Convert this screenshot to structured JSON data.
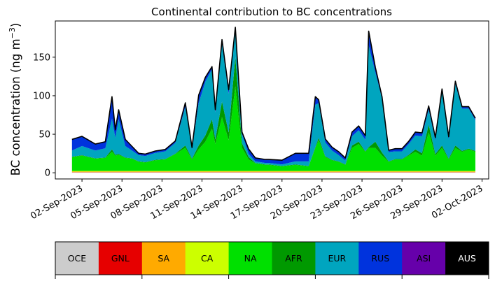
{
  "chart_data": {
    "type": "area",
    "stacked": true,
    "title": "Continental contribution to BC concentrations",
    "xlabel": "",
    "ylabel_main": "BC concentration (ng m",
    "ylabel_sup": "−3",
    "ylabel_close": ")",
    "ylim": [
      -8,
      197
    ],
    "yticks": [
      0,
      50,
      100,
      150
    ],
    "xlim": [
      "2023-08-31T00:00",
      "2023-10-02T12:00"
    ],
    "xticks": [
      "2023-09-02",
      "2023-09-05",
      "2023-09-08",
      "2023-09-11",
      "2023-09-14",
      "2023-09-17",
      "2023-09-20",
      "2023-09-23",
      "2023-09-26",
      "2023-09-29",
      "2023-10-02"
    ],
    "xtick_labels": [
      "02-Sep-2023",
      "05-Sep-2023",
      "08-Sep-2023",
      "11-Sep-2023",
      "14-Sep-2023",
      "17-Sep-2023",
      "20-Sep-2023",
      "23-Sep-2023",
      "26-Sep-2023",
      "29-Sep-2023",
      "02-Oct-2023"
    ],
    "grid": false,
    "x": [
      "2023-09-01T06:00",
      "2023-09-02T00:00",
      "2023-09-03T00:00",
      "2023-09-03T18:00",
      "2023-09-04T06:00",
      "2023-09-04T12:00",
      "2023-09-04T18:00",
      "2023-09-05T06:00",
      "2023-09-05T18:00",
      "2023-09-06T06:00",
      "2023-09-06T18:00",
      "2023-09-07T12:00",
      "2023-09-08T06:00",
      "2023-09-09T00:00",
      "2023-09-09T18:00",
      "2023-09-10T06:00",
      "2023-09-10T18:00",
      "2023-09-11T06:00",
      "2023-09-11T18:00",
      "2023-09-12T00:00",
      "2023-09-12T12:00",
      "2023-09-13T00:00",
      "2023-09-13T12:00",
      "2023-09-14T00:00",
      "2023-09-14T12:00",
      "2023-09-15T00:00",
      "2023-09-15T18:00",
      "2023-09-16T00:00",
      "2023-09-17T00:00",
      "2023-09-18T00:00",
      "2023-09-19T00:00",
      "2023-09-19T12:00",
      "2023-09-19T18:00",
      "2023-09-20T06:00",
      "2023-09-20T18:00",
      "2023-09-21T06:00",
      "2023-09-21T18:00",
      "2023-09-22T06:00",
      "2023-09-22T18:00",
      "2023-09-23T06:00",
      "2023-09-23T12:00",
      "2023-09-24T00:00",
      "2023-09-24T12:00",
      "2023-09-25T00:00",
      "2023-09-25T12:00",
      "2023-09-26T00:00",
      "2023-09-26T12:00",
      "2023-09-27T00:00",
      "2023-09-27T12:00",
      "2023-09-28T00:00",
      "2023-09-28T12:00",
      "2023-09-29T00:00",
      "2023-09-29T12:00",
      "2023-09-30T00:00",
      "2023-09-30T12:00",
      "2023-10-01T00:00",
      "2023-10-01T12:00"
    ],
    "series": [
      {
        "name": "OCE",
        "color": "#cccccc",
        "values": [
          0.5,
          0.5,
          0.5,
          0.5,
          0.5,
          0.5,
          0.5,
          0.5,
          0.5,
          0.5,
          0.5,
          0.5,
          0.5,
          0.5,
          0.5,
          0.5,
          0.5,
          0.5,
          0.5,
          0.5,
          0.5,
          0.5,
          0.5,
          0.5,
          0.5,
          0.5,
          0.5,
          0.5,
          0.5,
          0.5,
          0.5,
          0.5,
          0.5,
          0.5,
          0.5,
          0.5,
          0.5,
          0.5,
          0.5,
          0.5,
          0.5,
          0.5,
          0.5,
          0.5,
          0.5,
          0.5,
          0.5,
          0.5,
          0.5,
          0.5,
          0.5,
          0.5,
          0.5,
          0.5,
          0.5,
          0.5,
          0.5
        ]
      },
      {
        "name": "GNL",
        "color": "#e60000",
        "values": [
          0.3,
          0.3,
          0.3,
          0.3,
          0.3,
          0.3,
          0.3,
          0.3,
          0.3,
          0.3,
          0.3,
          0.3,
          0.3,
          0.3,
          0.3,
          0.3,
          0.3,
          0.3,
          0.3,
          0.3,
          0.3,
          0.3,
          0.3,
          0.3,
          0.3,
          0.3,
          0.3,
          0.3,
          0.3,
          0.3,
          0.3,
          0.3,
          0.3,
          0.3,
          0.3,
          0.3,
          0.3,
          0.3,
          0.3,
          0.3,
          0.3,
          0.3,
          0.3,
          0.3,
          0.3,
          0.3,
          0.3,
          0.3,
          0.3,
          0.3,
          0.3,
          0.3,
          0.3,
          0.3,
          0.3,
          0.3,
          0.3
        ]
      },
      {
        "name": "SA",
        "color": "#ffaa00",
        "values": [
          1,
          1,
          1,
          1,
          1,
          1,
          1,
          1,
          1,
          1,
          1,
          1,
          1,
          1,
          1,
          1,
          1,
          1,
          1,
          1,
          1,
          1,
          1,
          1,
          1,
          1,
          1,
          1,
          1,
          1,
          1,
          1,
          1,
          1,
          1,
          1,
          1,
          1,
          1,
          1,
          1,
          1,
          1,
          1,
          1,
          1,
          1,
          1,
          1,
          1,
          1,
          1,
          1,
          1,
          1,
          1,
          1
        ]
      },
      {
        "name": "CA",
        "color": "#ccff00",
        "values": [
          0.5,
          0.5,
          0.5,
          0.5,
          0.5,
          0.5,
          0.5,
          0.5,
          0.5,
          0.5,
          0.5,
          0.5,
          0.5,
          0.5,
          0.5,
          0.5,
          0.5,
          0.5,
          0.5,
          0.5,
          0.5,
          0.5,
          0.5,
          0.5,
          0.5,
          0.5,
          0.5,
          0.5,
          0.5,
          0.5,
          0.5,
          0.5,
          0.5,
          0.5,
          0.5,
          0.5,
          0.5,
          0.5,
          0.5,
          0.5,
          0.5,
          0.5,
          0.5,
          0.5,
          0.5,
          0.5,
          0.5,
          0.5,
          0.5,
          0.5,
          0.5,
          0.5,
          0.5,
          0.5,
          0.5,
          0.5,
          0.5
        ]
      },
      {
        "name": "NA",
        "color": "#00e000",
        "values": [
          18,
          20,
          16,
          17,
          25,
          20,
          21,
          17,
          16,
          12,
          11,
          14,
          15,
          22,
          30,
          15,
          28,
          38,
          55,
          35,
          70,
          40,
          110,
          30,
          15,
          10,
          8,
          8,
          6,
          8,
          6,
          30,
          40,
          18,
          14,
          12,
          8,
          30,
          35,
          25,
          30,
          30,
          20,
          12,
          15,
          15,
          20,
          25,
          20,
          50,
          20,
          30,
          15,
          30,
          25,
          28,
          25
        ]
      },
      {
        "name": "AFR",
        "color": "#009900",
        "values": [
          0.5,
          0.5,
          0.5,
          0.5,
          3,
          1,
          1,
          0.5,
          0.5,
          0.5,
          0.5,
          0.5,
          0.5,
          0.5,
          3,
          1,
          5,
          8,
          12,
          6,
          20,
          10,
          38,
          6,
          3,
          0.5,
          0.5,
          0.5,
          0.5,
          0.5,
          0.5,
          1,
          3,
          1,
          0.5,
          0.5,
          0.5,
          3,
          3,
          0.5,
          1,
          8,
          4,
          0.5,
          0.5,
          0.5,
          1,
          3,
          3,
          10,
          2,
          3,
          1,
          3,
          1,
          1,
          1
        ]
      },
      {
        "name": "EUR",
        "color": "#00a5bf",
        "values": [
          8,
          12,
          10,
          12,
          40,
          22,
          45,
          15,
          10,
          8,
          8,
          9,
          10,
          14,
          50,
          12,
          55,
          70,
          65,
          35,
          75,
          50,
          35,
          12,
          4,
          2,
          2,
          2,
          2,
          4,
          6,
          55,
          45,
          18,
          12,
          8,
          5,
          12,
          15,
          15,
          132,
          90,
          70,
          12,
          10,
          10,
          14,
          18,
          22,
          20,
          18,
          70,
          25,
          80,
          55,
          52,
          40
        ]
      },
      {
        "name": "RUS",
        "color": "#0033dd",
        "values": [
          14,
          12,
          8,
          8,
          28,
          10,
          12,
          8,
          5,
          2,
          2,
          2,
          2,
          2,
          5,
          2,
          10,
          5,
          3,
          3,
          5,
          5,
          3,
          2,
          6,
          4,
          4,
          4,
          5,
          10,
          10,
          10,
          4,
          4,
          4,
          4,
          3,
          5,
          5,
          5,
          18,
          6,
          2,
          2,
          3,
          3,
          3,
          4,
          4,
          4,
          3,
          3,
          3,
          3,
          2,
          2,
          2
        ]
      },
      {
        "name": "ASI",
        "color": "#6600aa",
        "values": [
          0.5,
          0.5,
          0.5,
          0.5,
          0.5,
          0.5,
          0.5,
          0.5,
          0.5,
          0.5,
          0.5,
          0.5,
          0.5,
          0.5,
          0.5,
          0.5,
          0.5,
          0.5,
          0.5,
          0.5,
          0.5,
          0.5,
          0.5,
          0.5,
          0.5,
          0.5,
          0.5,
          0.5,
          0.5,
          0.5,
          0.5,
          0.5,
          0.5,
          0.5,
          0.5,
          0.5,
          0.5,
          0.5,
          0.5,
          0.5,
          0.5,
          0.5,
          0.5,
          0.5,
          0.5,
          0.5,
          0.5,
          0.5,
          0.5,
          0.5,
          0.5,
          0.5,
          0.5,
          0.5,
          0.5,
          0.5,
          0.5
        ]
      },
      {
        "name": "AUS",
        "color": "#000000",
        "values": [
          0,
          0,
          0,
          0,
          0,
          0,
          0,
          0,
          0,
          0,
          0,
          0,
          0,
          0,
          0,
          0,
          0,
          0,
          0,
          0,
          0,
          0,
          0,
          0,
          0,
          0,
          0,
          0,
          0,
          0,
          0,
          0,
          0,
          0,
          0,
          0,
          0,
          0,
          0,
          0,
          0,
          0,
          0,
          0,
          0,
          0,
          0,
          0,
          0,
          0,
          0,
          0,
          0,
          0,
          0,
          0,
          0
        ]
      }
    ],
    "total_line_color": "#000000",
    "legend_placement": "bottom"
  }
}
